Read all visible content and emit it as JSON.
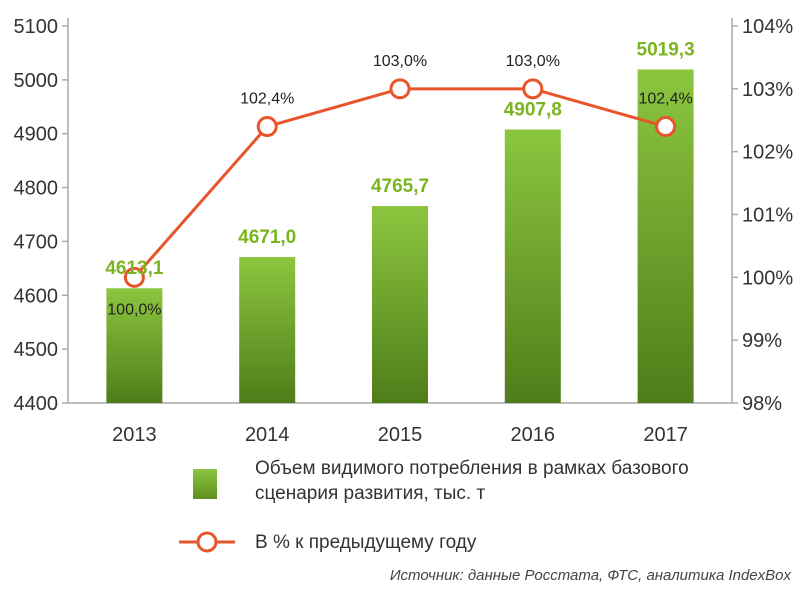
{
  "chart_data": {
    "type": "bar",
    "categories": [
      "2013",
      "2014",
      "2015",
      "2016",
      "2017"
    ],
    "series": [
      {
        "name": "Объем видимого потребления в рамках базового сценария развития, тыс. т",
        "type": "bar",
        "values": [
          4613.1,
          4671.0,
          4765.7,
          4907.8,
          5019.3
        ],
        "labels": [
          "4613,1",
          "4671,0",
          "4765,7",
          "4907,8",
          "5019,3"
        ],
        "axis": "left",
        "color": "#7ab41e"
      },
      {
        "name": "В % к предыдущему году",
        "type": "line",
        "values": [
          100.0,
          102.4,
          103.0,
          103.0,
          102.4
        ],
        "labels": [
          "100,0%",
          "102,4%",
          "103,0%",
          "103,0%",
          "102,4%"
        ],
        "axis": "right",
        "color": "#e8552a"
      }
    ],
    "y_left": {
      "lim": [
        4400,
        5100
      ],
      "ticks": [
        "4400",
        "4500",
        "4600",
        "4700",
        "4800",
        "4900",
        "5000",
        "5100"
      ]
    },
    "y_right": {
      "lim": [
        98,
        104
      ],
      "ticks": [
        "98%",
        "99%",
        "100%",
        "101%",
        "102%",
        "103%",
        "104%"
      ]
    },
    "grid": false,
    "legend_position": "bottom"
  },
  "legend": {
    "bar_line1": "Объем видимого потребления в рамках базового",
    "bar_line2": "сценария развития, тыс. т",
    "line": "В % к предыдущему году"
  },
  "source": "Источник: данные Росстата, ФТС, аналитика IndexBox"
}
